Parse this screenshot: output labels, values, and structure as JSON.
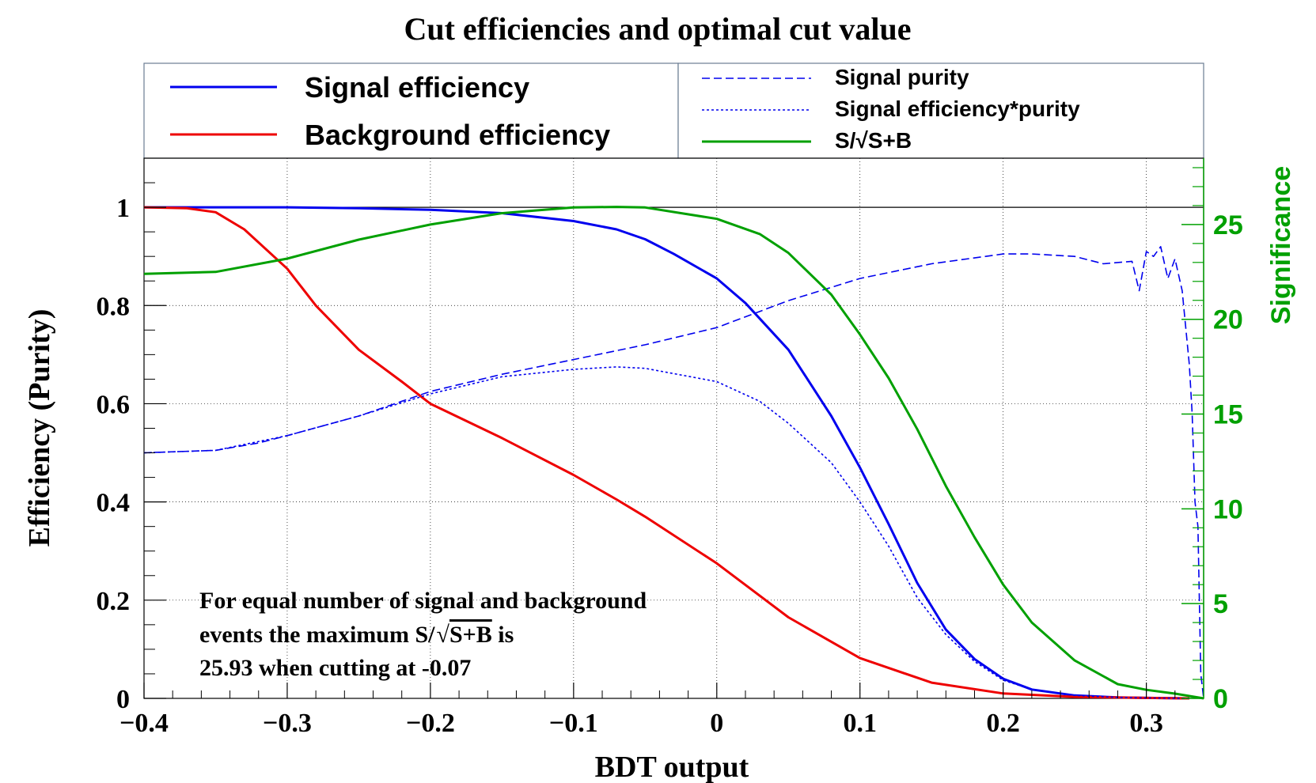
{
  "chart_data": {
    "type": "line",
    "title": "Cut efficiencies and optimal cut value",
    "xlabel": "BDT output",
    "ylabel": "Efficiency (Purity)",
    "y2label": "Significance",
    "xlim": [
      -0.4,
      0.34
    ],
    "ylim": [
      0,
      1.1
    ],
    "y2lim": [
      0,
      28.5
    ],
    "x_ticks": [
      "−0.4",
      "−0.3",
      "−0.2",
      "−0.1",
      "0",
      "0.1",
      "0.2",
      "0.3"
    ],
    "y_ticks": [
      "0",
      "0.2",
      "0.4",
      "0.6",
      "0.8",
      "1"
    ],
    "y2_ticks": [
      "0",
      "5",
      "10",
      "15",
      "20",
      "25"
    ],
    "grid": true,
    "legend_left": [
      "Signal efficiency",
      "Background efficiency"
    ],
    "legend_right": [
      "Signal purity",
      "Signal efficiency*purity",
      "S/√S+B"
    ],
    "annotation": {
      "line1": "For equal number of signal and background",
      "line2a": "events the maximum S/",
      "line2b": "S+B",
      "line2c": " is",
      "line3": "25.93 when cutting at -0.07"
    },
    "series": [
      {
        "name": "Signal efficiency",
        "axis": "left",
        "color": "#0000ee",
        "style": "solid",
        "x": [
          -0.4,
          -0.35,
          -0.3,
          -0.25,
          -0.2,
          -0.15,
          -0.1,
          -0.07,
          -0.05,
          -0.03,
          0,
          0.02,
          0.05,
          0.08,
          0.1,
          0.12,
          0.14,
          0.16,
          0.18,
          0.2,
          0.22,
          0.25,
          0.28,
          0.3,
          0.33
        ],
        "values": [
          1,
          1,
          1,
          0.998,
          0.995,
          0.988,
          0.972,
          0.955,
          0.935,
          0.905,
          0.855,
          0.805,
          0.71,
          0.575,
          0.47,
          0.355,
          0.235,
          0.14,
          0.08,
          0.04,
          0.018,
          0.006,
          0.002,
          0.001,
          0
        ]
      },
      {
        "name": "Background efficiency",
        "axis": "left",
        "color": "#ee0000",
        "style": "solid",
        "x": [
          -0.4,
          -0.37,
          -0.35,
          -0.33,
          -0.3,
          -0.28,
          -0.25,
          -0.22,
          -0.2,
          -0.15,
          -0.1,
          -0.07,
          -0.05,
          0,
          0.05,
          0.1,
          0.15,
          0.2,
          0.25,
          0.3,
          0.33
        ],
        "values": [
          1,
          0.998,
          0.99,
          0.955,
          0.875,
          0.8,
          0.71,
          0.645,
          0.6,
          0.53,
          0.455,
          0.405,
          0.37,
          0.275,
          0.165,
          0.082,
          0.032,
          0.01,
          0.003,
          0.001,
          0
        ]
      },
      {
        "name": "Signal purity",
        "axis": "left",
        "color": "#0000ee",
        "style": "dashed",
        "x": [
          -0.4,
          -0.35,
          -0.32,
          -0.3,
          -0.25,
          -0.2,
          -0.15,
          -0.1,
          -0.05,
          0,
          0.05,
          0.1,
          0.15,
          0.2,
          0.22,
          0.25,
          0.27,
          0.29,
          0.295,
          0.3,
          0.305,
          0.31,
          0.315,
          0.32,
          0.325,
          0.33,
          0.332,
          0.334,
          0.336,
          0.338,
          0.34
        ],
        "values": [
          0.5,
          0.505,
          0.52,
          0.535,
          0.575,
          0.625,
          0.66,
          0.69,
          0.72,
          0.755,
          0.81,
          0.855,
          0.885,
          0.905,
          0.905,
          0.9,
          0.885,
          0.89,
          0.83,
          0.91,
          0.9,
          0.92,
          0.855,
          0.895,
          0.83,
          0.68,
          0.58,
          0.4,
          0.35,
          0.05,
          0
        ]
      },
      {
        "name": "Signal efficiency*purity",
        "axis": "left",
        "color": "#0000ee",
        "style": "dotted",
        "x": [
          -0.4,
          -0.35,
          -0.3,
          -0.25,
          -0.2,
          -0.15,
          -0.1,
          -0.07,
          -0.05,
          0,
          0.03,
          0.05,
          0.08,
          0.1,
          0.12,
          0.14,
          0.16,
          0.18,
          0.2,
          0.22,
          0.25,
          0.28,
          0.3,
          0.33
        ],
        "values": [
          0.5,
          0.505,
          0.535,
          0.575,
          0.62,
          0.655,
          0.67,
          0.675,
          0.672,
          0.645,
          0.605,
          0.56,
          0.48,
          0.4,
          0.31,
          0.205,
          0.13,
          0.075,
          0.037,
          0.018,
          0.006,
          0.002,
          0.001,
          0
        ]
      },
      {
        "name": "S/√S+B",
        "axis": "right",
        "color": "#00a000",
        "style": "solid",
        "x": [
          -0.4,
          -0.35,
          -0.3,
          -0.25,
          -0.2,
          -0.15,
          -0.1,
          -0.07,
          -0.05,
          0,
          0.03,
          0.05,
          0.08,
          0.1,
          0.12,
          0.14,
          0.16,
          0.18,
          0.2,
          0.22,
          0.25,
          0.28,
          0.3,
          0.32,
          0.34
        ],
        "values": [
          22.4,
          22.5,
          23.2,
          24.2,
          25.0,
          25.6,
          25.9,
          25.93,
          25.9,
          25.3,
          24.5,
          23.5,
          21.3,
          19.2,
          16.9,
          14.2,
          11.2,
          8.5,
          6.0,
          4.0,
          2.0,
          0.75,
          0.45,
          0.25,
          0
        ]
      }
    ]
  }
}
